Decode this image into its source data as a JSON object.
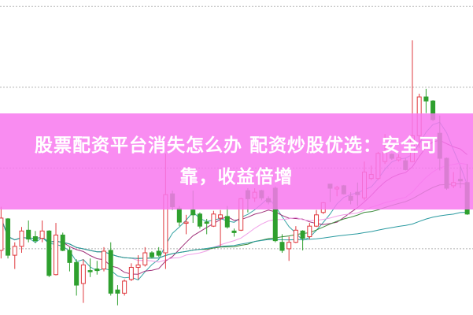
{
  "banner": {
    "line1": "股票配资平台消失怎么办 配资炒股优选：安全可",
    "line2": "靠，收益倍增"
  },
  "chart_data": {
    "type": "candlestick",
    "title": "",
    "xlabel": "",
    "ylabel": "",
    "ylim": [
      0.18,
      4.08
    ],
    "gridlines": [
      1,
      2,
      3,
      4
    ],
    "grid": "horizontal dotted",
    "colors": {
      "up": "#e0393e",
      "down": "#2ea02e",
      "grid": "#b0b0b0",
      "banner": "#f878ee"
    },
    "moving_averages": [
      {
        "period": 5,
        "color": "#3aa6a6"
      },
      {
        "period": 10,
        "color": "#a0307a"
      },
      {
        "period": 20,
        "color": "#f0a0e8"
      },
      {
        "period": 30,
        "color": "#3a8a3a"
      },
      {
        "period": 60,
        "color": "#2a9aa0"
      }
    ],
    "ohlc": [
      [
        0.98,
        1.52,
        0.88,
        1.38
      ],
      [
        1.37,
        1.38,
        0.88,
        0.92
      ],
      [
        0.92,
        1.08,
        0.75,
        1.03
      ],
      [
        1.03,
        1.27,
        0.95,
        1.22
      ],
      [
        1.23,
        1.35,
        1.08,
        1.12
      ],
      [
        1.15,
        1.22,
        1.07,
        1.1
      ],
      [
        1.13,
        1.35,
        1.08,
        1.22
      ],
      [
        1.22,
        1.23,
        0.65,
        0.67
      ],
      [
        0.68,
        1.32,
        0.67,
        1.17
      ],
      [
        1.17,
        1.2,
        0.97,
        0.98
      ],
      [
        0.98,
        1.02,
        0.72,
        0.83
      ],
      [
        0.83,
        0.87,
        0.42,
        0.55
      ],
      [
        0.57,
        0.87,
        0.33,
        0.8
      ],
      [
        0.73,
        0.88,
        0.65,
        0.72
      ],
      [
        0.75,
        0.85,
        0.68,
        0.73
      ],
      [
        0.75,
        1.02,
        0.72,
        0.97
      ],
      [
        0.98,
        1.08,
        0.42,
        0.45
      ],
      [
        0.49,
        0.55,
        0.3,
        0.45
      ],
      [
        0.45,
        0.62,
        0.42,
        0.6
      ],
      [
        0.62,
        0.82,
        0.6,
        0.77
      ],
      [
        0.77,
        0.92,
        0.62,
        0.8
      ],
      [
        0.8,
        1.02,
        0.78,
        0.95
      ],
      [
        0.95,
        0.97,
        0.88,
        0.9
      ],
      [
        0.97,
        1.02,
        0.9,
        0.92
      ],
      [
        0.95,
        2.18,
        0.75,
        1.67
      ],
      [
        1.68,
        1.72,
        1.48,
        1.52
      ],
      [
        1.5,
        1.53,
        1.28,
        1.33
      ],
      [
        1.32,
        1.42,
        1.18,
        1.33
      ],
      [
        1.48,
        1.72,
        1.32,
        1.42
      ],
      [
        1.43,
        1.45,
        1.25,
        1.28
      ],
      [
        1.33,
        1.37,
        1.18,
        1.32
      ],
      [
        1.28,
        1.47,
        1.27,
        1.43
      ],
      [
        1.38,
        1.48,
        1.03,
        1.42
      ],
      [
        1.4,
        1.53,
        1.25,
        1.27
      ],
      [
        1.22,
        1.25,
        1.15,
        1.2
      ],
      [
        1.23,
        1.63,
        1.22,
        1.62
      ],
      [
        1.72,
        1.75,
        1.45,
        1.62
      ],
      [
        1.63,
        1.75,
        1.58,
        1.7
      ],
      [
        1.72,
        1.73,
        1.6,
        1.63
      ],
      [
        1.62,
        1.65,
        1.55,
        1.58
      ],
      [
        1.75,
        1.77,
        1.08,
        1.1
      ],
      [
        1.08,
        1.18,
        0.95,
        0.98
      ],
      [
        1.0,
        1.15,
        0.85,
        1.08
      ],
      [
        1.08,
        1.28,
        1.07,
        1.23
      ],
      [
        1.22,
        1.23,
        0.98,
        1.13
      ],
      [
        1.15,
        1.32,
        1.12,
        1.28
      ],
      [
        1.28,
        1.48,
        1.27,
        1.42
      ],
      [
        1.45,
        1.58,
        1.43,
        1.57
      ],
      [
        1.8,
        1.8,
        1.58,
        1.75
      ],
      [
        1.74,
        1.78,
        1.65,
        1.76
      ],
      [
        1.78,
        1.79,
        1.67,
        1.68
      ],
      [
        1.65,
        1.7,
        1.55,
        1.6
      ],
      [
        1.7,
        1.82,
        1.53,
        1.67
      ],
      [
        1.63,
        2.08,
        1.6,
        1.95
      ],
      [
        1.87,
        2.03,
        1.85,
        1.92
      ],
      [
        1.87,
        2.2,
        1.85,
        2.18
      ],
      [
        2.08,
        2.42,
        2.05,
        2.2
      ],
      [
        2.17,
        2.18,
        2.1,
        2.12
      ],
      [
        2.1,
        2.17,
        2.08,
        2.13
      ],
      [
        2.09,
        2.12,
        1.97,
        1.98
      ],
      [
        2.08,
        3.58,
        2.07,
        2.4
      ],
      [
        2.4,
        2.92,
        2.25,
        2.88
      ],
      [
        2.88,
        2.98,
        2.68,
        2.83
      ],
      [
        2.83,
        2.84,
        2.58,
        2.6
      ],
      [
        2.43,
        2.65,
        1.97,
        2.12
      ],
      [
        2.12,
        2.13,
        1.73,
        1.75
      ],
      [
        1.78,
        1.95,
        1.75,
        1.82
      ],
      [
        1.86,
        2.02,
        1.75,
        1.84
      ],
      [
        1.82,
        2.05,
        1.42,
        1.43
      ]
    ]
  }
}
